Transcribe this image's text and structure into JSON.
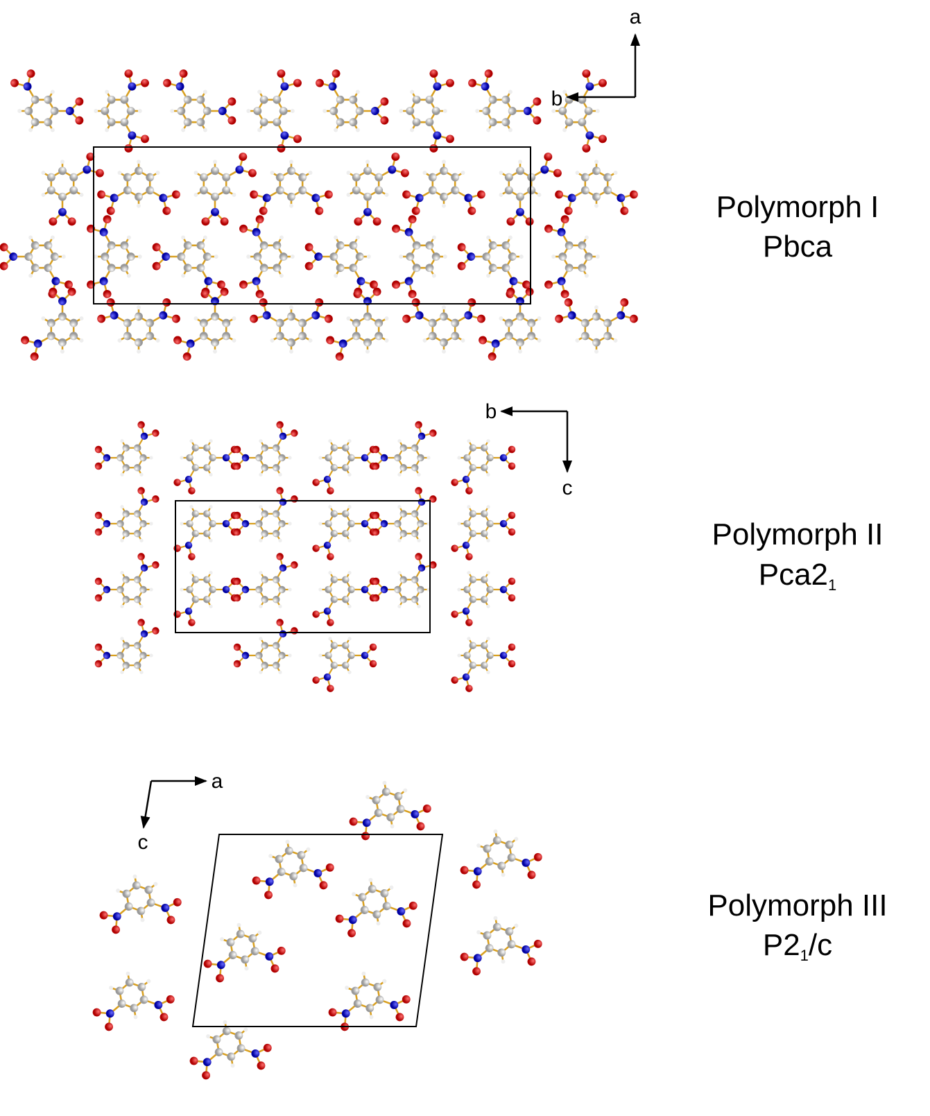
{
  "panels": [
    {
      "axes": {
        "vertical": "a",
        "horizontal": "b"
      },
      "name": "Polymorph I",
      "space_group": {
        "main": "Pbca"
      }
    },
    {
      "axes": {
        "horizontal": "b",
        "vertical": "c"
      },
      "name": "Polymorph II",
      "space_group": {
        "main": "Pca2",
        "sub": "1"
      }
    },
    {
      "axes": {
        "horizontal": "a",
        "vertical": "c"
      },
      "name": "Polymorph III",
      "space_group": {
        "main": "P2",
        "sub": "1",
        "tail": "/c"
      }
    }
  ]
}
